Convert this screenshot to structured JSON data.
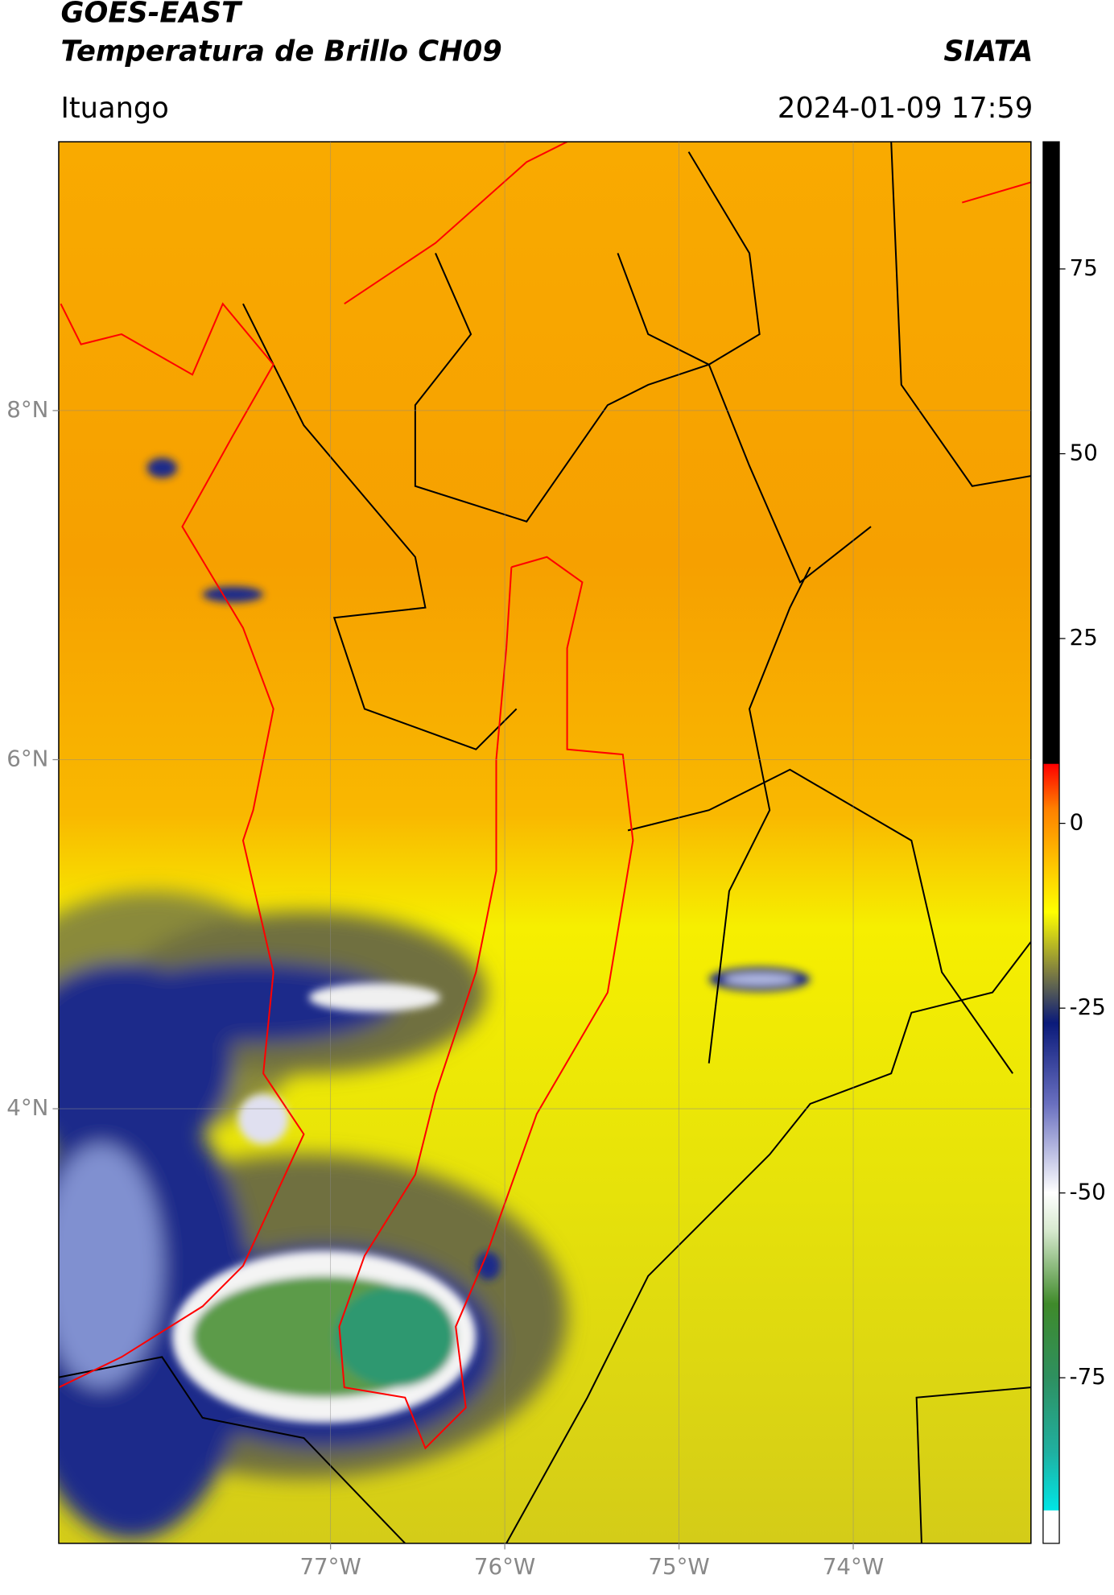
{
  "header": {
    "title": "GOES-EAST",
    "subtitle": "Temperatura de Brillo CH09",
    "source": "SIATA",
    "location": "Ituango",
    "datetime": "2024-01-09 17:59"
  },
  "map": {
    "xlim": [
      -78.56,
      -72.98
    ],
    "ylim": [
      1.51,
      9.54
    ],
    "xticks": [
      {
        "value": -77,
        "label": "77°W"
      },
      {
        "value": -76,
        "label": "76°W"
      },
      {
        "value": -75,
        "label": "75°W"
      },
      {
        "value": -74,
        "label": "74°W"
      }
    ],
    "yticks": [
      {
        "value": 8,
        "label": "8°N"
      },
      {
        "value": 6,
        "label": "6°N"
      },
      {
        "value": 4,
        "label": "4°N"
      }
    ],
    "grid": true
  },
  "colorbar": {
    "lim": [
      -97.4,
      92.2
    ],
    "ticks": [
      75,
      50,
      25,
      0,
      -25,
      -50,
      -75
    ],
    "stops": [
      {
        "value": -97.4,
        "color": "#ffffff"
      },
      {
        "value": -93,
        "color": "#ffffff"
      },
      {
        "value": -92.9,
        "color": "#00e5e5"
      },
      {
        "value": -85,
        "color": "#20b0a0"
      },
      {
        "value": -75,
        "color": "#2e9060"
      },
      {
        "value": -65,
        "color": "#3f8a2a"
      },
      {
        "value": -55,
        "color": "#d8ead0"
      },
      {
        "value": -50,
        "color": "#ffffff"
      },
      {
        "value": -38,
        "color": "#6a70c0"
      },
      {
        "value": -27,
        "color": "#0a1a7a"
      },
      {
        "value": -20,
        "color": "#808040"
      },
      {
        "value": -12,
        "color": "#ffff00"
      },
      {
        "value": -5,
        "color": "#ffc000"
      },
      {
        "value": 2,
        "color": "#ff8000"
      },
      {
        "value": 8,
        "color": "#ff0000"
      },
      {
        "value": 8.1,
        "color": "#000000"
      },
      {
        "value": 92.2,
        "color": "#000000"
      }
    ]
  }
}
